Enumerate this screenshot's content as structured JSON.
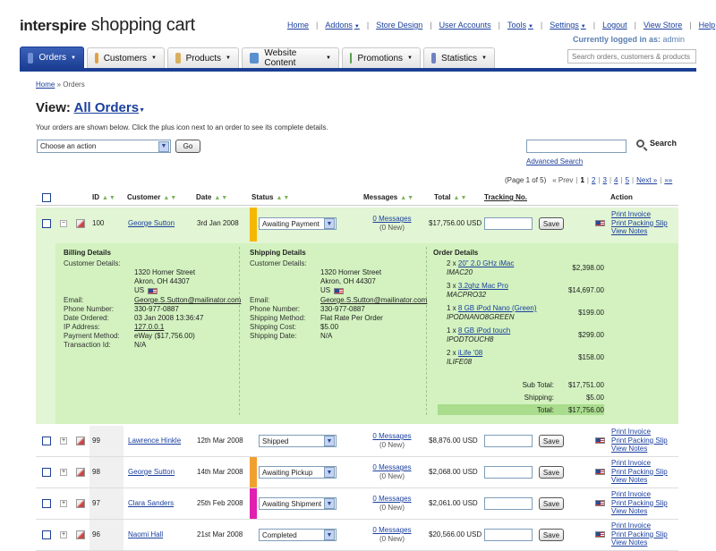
{
  "logo": {
    "brand": "interspire",
    "product": "shopping cart"
  },
  "topnav": [
    {
      "label": "Home",
      "caret": false
    },
    {
      "label": "Addons",
      "caret": true
    },
    {
      "label": "Store Design",
      "caret": false
    },
    {
      "label": "User Accounts",
      "caret": false
    },
    {
      "label": "Tools",
      "caret": true
    },
    {
      "label": "Settings",
      "caret": true
    },
    {
      "label": "Logout",
      "caret": false
    },
    {
      "label": "View Store",
      "caret": false
    },
    {
      "label": "Help",
      "caret": false
    }
  ],
  "logged_in": {
    "prefix": "Currently logged in as:",
    "user": "admin"
  },
  "tabs": [
    {
      "label": "Orders",
      "icon": "orders-icon",
      "color": "#6f8fd6"
    },
    {
      "label": "Customers",
      "icon": "customers-icon",
      "color": "#e0a040"
    },
    {
      "label": "Products",
      "icon": "products-icon",
      "color": "#d8b060"
    },
    {
      "label": "Website Content",
      "icon": "website-content-icon",
      "color": "#5a8fd0"
    },
    {
      "label": "Promotions",
      "icon": "promotions-icon",
      "color": "#5aa050"
    },
    {
      "label": "Statistics",
      "icon": "statistics-icon",
      "color": "#7080c0"
    }
  ],
  "global_search": {
    "placeholder": "Search orders, customers & products"
  },
  "breadcrumb": {
    "home": "Home",
    "sep": "»",
    "current": "Orders"
  },
  "view": {
    "label": "View:",
    "value": "All Orders"
  },
  "intro": "Your orders are shown below. Click the plus icon next to an order to see its complete details.",
  "action_select": {
    "value": "Choose an action"
  },
  "go_label": "Go",
  "search_label": "Search",
  "advanced_search": "Advanced Search",
  "pager": {
    "info": "(Page 1 of 5)",
    "prev": "« Prev",
    "pages": [
      "1",
      "2",
      "3",
      "4",
      "5"
    ],
    "next": "Next »",
    "last": "»»"
  },
  "columns": {
    "id": "ID",
    "customer": "Customer",
    "date": "Date",
    "status": "Status",
    "messages": "Messages",
    "total": "Total",
    "tracking": "Tracking No.",
    "action": "Action"
  },
  "labels": {
    "save": "Save",
    "print_invoice": "Print Invoice",
    "print_packing": "Print Packing Slip",
    "view_notes": "View Notes"
  },
  "orders": [
    {
      "id": "100",
      "customer": "George Sutton",
      "date": "3rd Jan 2008",
      "status": "Awaiting Payment",
      "status_color": "#f5b800",
      "messages": "0 Messages",
      "new": "(0 New)",
      "total": "$17,756.00 USD",
      "expanded": true
    },
    {
      "id": "99",
      "customer": "Lawrence Hinkle",
      "date": "12th Mar 2008",
      "status": "Shipped",
      "status_color": "",
      "messages": "0 Messages",
      "new": "(0 New)",
      "total": "$8,876.00 USD",
      "expanded": false
    },
    {
      "id": "98",
      "customer": "George Sutton",
      "date": "14th Mar 2008",
      "status": "Awaiting Pickup",
      "status_color": "#f0a030",
      "messages": "0 Messages",
      "new": "(0 New)",
      "total": "$2,068.00 USD",
      "expanded": false
    },
    {
      "id": "97",
      "customer": "Clara Sanders",
      "date": "25th Feb 2008",
      "status": "Awaiting Shipment",
      "status_color": "#e020b0",
      "messages": "0 Messages",
      "new": "(0 New)",
      "total": "$2,061.00 USD",
      "expanded": false
    },
    {
      "id": "96",
      "customer": "Naomi Hall",
      "date": "21st Mar 2008",
      "status": "Completed",
      "status_color": "",
      "messages": "0 Messages",
      "new": "(0 New)",
      "total": "$20,566.00 USD",
      "expanded": false
    }
  ],
  "billing": {
    "title": "Billing Details",
    "customer_label": "Customer Details:",
    "address": [
      "1320 Horner Street",
      "Akron, OH 44307",
      "US"
    ],
    "fields": [
      {
        "label": "Email:",
        "value": "George.S.Sutton@mailinator.com",
        "link": true
      },
      {
        "label": "Phone Number:",
        "value": "330-977-0887",
        "link": false
      },
      {
        "label": "Date Ordered:",
        "value": "03 Jan 2008 13:36:47",
        "link": false
      },
      {
        "label": "IP Address:",
        "value": "127.0.0.1",
        "link": true
      },
      {
        "label": "Payment Method:",
        "value": "eWay ($17,756.00)",
        "link": false
      },
      {
        "label": "Transaction Id:",
        "value": "N/A",
        "link": false
      }
    ]
  },
  "shipping": {
    "title": "Shipping Details",
    "customer_label": "Customer Details:",
    "address": [
      "1320 Horner Street",
      "Akron, OH 44307",
      "US"
    ],
    "fields": [
      {
        "label": "Email:",
        "value": "George.S.Sutton@mailinator.com",
        "link": true
      },
      {
        "label": "Phone Number:",
        "value": "330-977-0887",
        "link": false
      },
      {
        "label": "Shipping Method:",
        "value": "Flat Rate Per Order",
        "link": false
      },
      {
        "label": "Shipping Cost:",
        "value": "$5.00",
        "link": false
      },
      {
        "label": "Shipping Date:",
        "value": "N/A",
        "link": false
      }
    ]
  },
  "order_details": {
    "title": "Order Details",
    "items": [
      {
        "qty": "2 x",
        "name": "20\" 2.0 GHz iMac",
        "sku": "IMAC20",
        "price": "$2,398.00"
      },
      {
        "qty": "3 x",
        "name": "3.2ghz Mac Pro",
        "sku": "MACPRO32",
        "price": "$14,697.00"
      },
      {
        "qty": "1 x",
        "name": "8 GB iPod Nano (Green)",
        "sku": "IPODNANO8GREEN",
        "price": "$199.00"
      },
      {
        "qty": "1 x",
        "name": "8 GB iPod touch",
        "sku": "IPODTOUCH8",
        "price": "$299.00"
      },
      {
        "qty": "2 x",
        "name": "iLife '08",
        "sku": "ILIFE08",
        "price": "$158.00"
      }
    ],
    "subtotal_label": "Sub Total:",
    "subtotal": "$17,751.00",
    "shipping_label": "Shipping:",
    "shipping": "$5.00",
    "total_label": "Total:",
    "total": "$17,756.00"
  }
}
